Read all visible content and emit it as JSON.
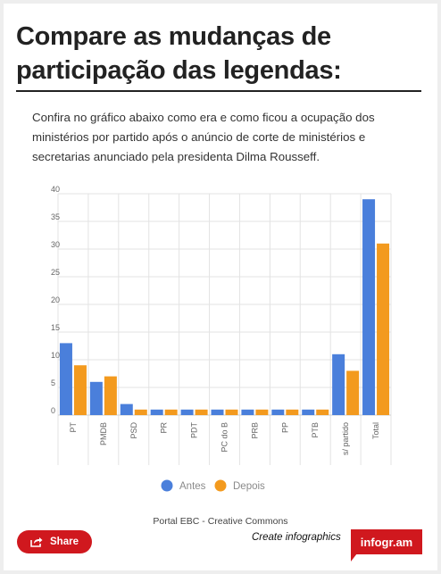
{
  "page": {
    "title": "Compare as mudanças de participação das legendas:",
    "description": "Confira no gráfico abaixo como era e como ficou a ocupação dos ministérios por partido após o anúncio de corte de ministérios e secretarias anunciado pela presidenta Dilma Rousseff.",
    "source": "Portal EBC - Creative Commons",
    "share_label": "Share",
    "create_label": "Create infographics",
    "brand_label": "infogr.am"
  },
  "colors": {
    "antes": "#4a7fdb",
    "depois": "#f39a1e",
    "brand": "#d0181e"
  },
  "chart_data": {
    "type": "bar",
    "categories": [
      "PT",
      "PMDB",
      "PSD",
      "PR",
      "PDT",
      "PC do B",
      "PRB",
      "PP",
      "PTB",
      "s/ partido",
      "Total"
    ],
    "series": [
      {
        "name": "Antes",
        "values": [
          13,
          6,
          2,
          1,
          1,
          1,
          1,
          1,
          1,
          11,
          39
        ]
      },
      {
        "name": "Depois",
        "values": [
          9,
          7,
          1,
          1,
          1,
          1,
          1,
          1,
          1,
          8,
          31
        ]
      }
    ],
    "yticks": [
      0,
      5,
      10,
      15,
      20,
      25,
      30,
      35,
      40
    ],
    "ylim": [
      0,
      40
    ],
    "grid": true,
    "legend": "bottom"
  }
}
